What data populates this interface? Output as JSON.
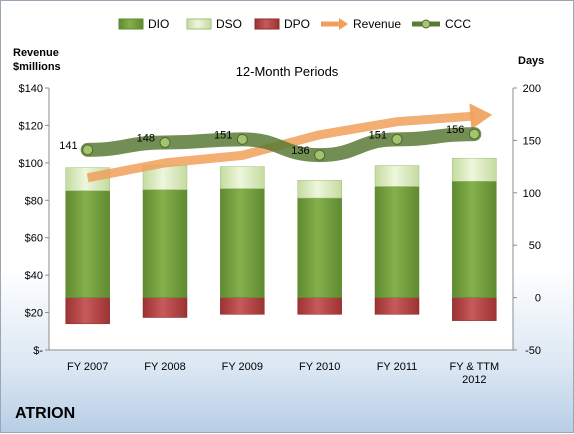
{
  "company": "ATRION",
  "chart_data": {
    "type": "bar",
    "title": "12-Month Periods",
    "left_axis_label": [
      "Revenue",
      "$millions"
    ],
    "right_axis_label": "Days",
    "categories": [
      "FY 2007",
      "FY 2008",
      "FY 2009",
      "FY 2010",
      "FY 2011",
      "FY & TTM|2012"
    ],
    "left_ticks": [
      "$-",
      "$20",
      "$40",
      "$60",
      "$80",
      "$100",
      "$120",
      "$140"
    ],
    "left_range": [
      0,
      140
    ],
    "right_ticks": [
      "-50",
      "0",
      "50",
      "100",
      "150",
      "200"
    ],
    "right_range": [
      -50,
      200
    ],
    "series": [
      {
        "name": "DIO",
        "kind": "bar-stack-positive",
        "axis": "days",
        "color": "#77a044",
        "values": [
          102,
          103,
          104,
          95,
          106,
          111
        ]
      },
      {
        "name": "DSO",
        "kind": "bar-stack-positive",
        "axis": "days",
        "color": "#d7e8b8",
        "values": [
          22,
          23,
          21,
          17,
          20,
          22
        ]
      },
      {
        "name": "DPO",
        "kind": "bar-negative",
        "axis": "days",
        "color": "#b84a4a",
        "values": [
          -25,
          -19,
          -16,
          -16,
          -16,
          -22
        ]
      },
      {
        "name": "Revenue",
        "kind": "arrow-line",
        "axis": "revenue",
        "color": "#f0a05a",
        "values": [
          92,
          100,
          104,
          115,
          122,
          125
        ]
      },
      {
        "name": "CCC",
        "kind": "line-markers",
        "axis": "days",
        "color": "#5b7a36",
        "values": [
          141,
          148,
          151,
          136,
          151,
          156
        ],
        "labels": [
          "141",
          "148",
          "151",
          "136",
          "151",
          "156"
        ]
      }
    ],
    "legend_position": "top",
    "grid": false
  }
}
